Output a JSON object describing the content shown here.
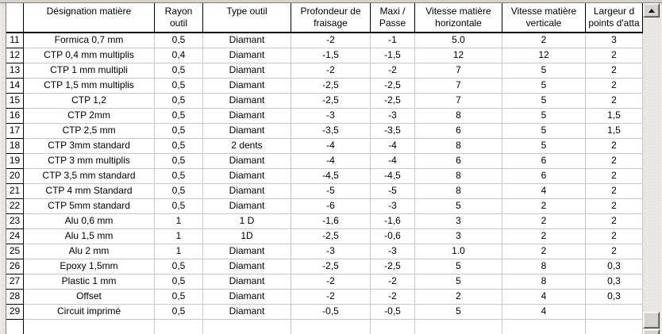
{
  "table": {
    "columns": [
      {
        "id": "row_num",
        "label": ""
      },
      {
        "id": "designation",
        "label": "Désignation matière"
      },
      {
        "id": "rayon_outil",
        "label": "Rayon\noutil"
      },
      {
        "id": "type_outil",
        "label": "Type outil"
      },
      {
        "id": "profondeur",
        "label": "Profondeur de\nfraisage"
      },
      {
        "id": "maxi_passe",
        "label": "Maxi /\nPasse"
      },
      {
        "id": "vitesse_horizontale",
        "label": "Vitesse matière\nhorizontale"
      },
      {
        "id": "vitesse_verticale",
        "label": "Vitesse matière\nverticale"
      },
      {
        "id": "largeur_points_attache",
        "label": "Largeur d\npoints d'atta"
      }
    ],
    "rows": [
      {
        "num": "11",
        "cells": [
          "Formica 0,7 mm",
          "0,5",
          "Diamant",
          "-2",
          "-1",
          "5.0",
          "2",
          "3"
        ]
      },
      {
        "num": "12",
        "cells": [
          "CTP 0,4 mm multiplis",
          "0,4",
          "Diamant",
          "-1,5",
          "-1,5",
          "12",
          "12",
          "2"
        ]
      },
      {
        "num": "13",
        "cells": [
          "CTP 1 mm multipli",
          "0,5",
          "Diamant",
          "-2",
          "-2",
          "7",
          "5",
          "2"
        ]
      },
      {
        "num": "14",
        "cells": [
          "CTP 1,5 mm multiplis",
          "0,5",
          "Diamant",
          "-2,5",
          "-2,5",
          "7",
          "5",
          "2"
        ]
      },
      {
        "num": "15",
        "cells": [
          "CTP 1,2",
          "0,5",
          "Diamant",
          "-2,5",
          "-2,5",
          "7",
          "5",
          "2"
        ]
      },
      {
        "num": "16",
        "cells": [
          "CTP 2mm",
          "0,5",
          "Diamant",
          "-3",
          "-3",
          "8",
          "5",
          "1,5"
        ]
      },
      {
        "num": "17",
        "cells": [
          "CTP 2,5 mm",
          "0,5",
          "Diamant",
          "-3,5",
          "-3,5",
          "6",
          "5",
          "1,5"
        ]
      },
      {
        "num": "18",
        "cells": [
          "CTP 3mm standard",
          "0,5",
          "2 dents",
          "-4",
          "-4",
          "8",
          "5",
          "2"
        ]
      },
      {
        "num": "19",
        "cells": [
          "CTP 3 mm multiplis",
          "0,5",
          "Diamant",
          "-4",
          "-4",
          "6",
          "6",
          "2"
        ]
      },
      {
        "num": "20",
        "cells": [
          "CTP 3,5 mm standard",
          "0,5",
          "Diamant",
          "-4,5",
          "-4,5",
          "8",
          "6",
          "2"
        ]
      },
      {
        "num": "21",
        "cells": [
          "CTP 4 mm Standard",
          "0,5",
          "Diamant",
          "-5",
          "-5",
          "8",
          "4",
          "2"
        ]
      },
      {
        "num": "22",
        "cells": [
          "CTP 5mm standard",
          "0,5",
          "Diamant",
          "-6",
          "-3",
          "5",
          "2",
          "2"
        ]
      },
      {
        "num": "23",
        "cells": [
          "Alu 0,6 mm",
          "1",
          "1 D",
          "-1,6",
          "-1,6",
          "3",
          "2",
          "2"
        ]
      },
      {
        "num": "24",
        "cells": [
          "Alu 1,5 mm",
          "1",
          "1D",
          "-2,5",
          "-0,6",
          "3",
          "2",
          "2"
        ]
      },
      {
        "num": "25",
        "cells": [
          "Alu 2 mm",
          "1",
          "Diamant",
          "-3",
          "-3",
          "1.0",
          "2",
          "2"
        ]
      },
      {
        "num": "26",
        "cells": [
          "Epoxy 1,5mm",
          "0,5",
          "Diamant",
          "-2,5",
          "-2,5",
          "5",
          "8",
          "0,3"
        ]
      },
      {
        "num": "27",
        "cells": [
          "Plastic 1 mm",
          "0,5",
          "Diamant",
          "-2",
          "-2",
          "5",
          "8",
          "0,3"
        ]
      },
      {
        "num": "28",
        "cells": [
          "Offset",
          "0,5",
          "Diamant",
          "-2",
          "-2",
          "2",
          "4",
          "0,3"
        ]
      },
      {
        "num": "29",
        "cells": [
          "Circuit imprimé",
          "0,5",
          "Diamant",
          "-0,5",
          "-0,5",
          "5",
          "4",
          ""
        ]
      }
    ]
  },
  "scrollbar": {
    "up_icon": "triangle-up",
    "down_icon": "triangle-down"
  },
  "colors": {
    "grid_line": "#c8c8c8",
    "fixed_border": "#000000",
    "chrome_face": "#d6d3ce",
    "chrome_shadow": "#808080",
    "cell_background": "#ffffff"
  }
}
